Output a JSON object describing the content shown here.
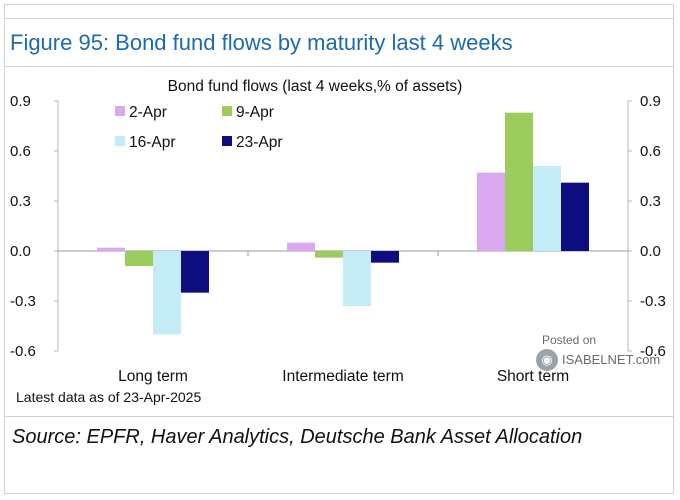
{
  "figure_title": "Figure 95: Bond fund flows by maturity last 4 weeks",
  "note": "Latest data as of 23-Apr-2025",
  "source": "Source: EPFR, Haver Analytics, Deutsche Bank Asset Allocation",
  "watermark": {
    "posted": "Posted on",
    "site": "ISABELNET.com"
  },
  "chart_data": {
    "type": "bar",
    "title": "Bond fund flows (last 4 weeks,% of assets)",
    "categories": [
      "Long term",
      "Intermediate term",
      "Short term"
    ],
    "series": [
      {
        "name": "2-Apr",
        "color": "#d9a8ee",
        "values": [
          0.02,
          0.05,
          0.47
        ]
      },
      {
        "name": "9-Apr",
        "color": "#9ccc5c",
        "values": [
          -0.09,
          -0.04,
          0.83
        ]
      },
      {
        "name": "16-Apr",
        "color": "#c4ecf6",
        "values": [
          -0.5,
          -0.33,
          0.51
        ]
      },
      {
        "name": "23-Apr",
        "color": "#0d0d80",
        "values": [
          -0.25,
          -0.07,
          0.41
        ]
      }
    ],
    "ylim": [
      -0.6,
      0.9
    ],
    "yticks": [
      "0.9",
      "0.6",
      "0.3",
      "0.0",
      "-0.3",
      "-0.6"
    ],
    "ytick_values": [
      0.9,
      0.6,
      0.3,
      0.0,
      -0.3,
      -0.6
    ],
    "xlabel": "",
    "ylabel": "",
    "legend_position": "top-left",
    "grid": false
  }
}
